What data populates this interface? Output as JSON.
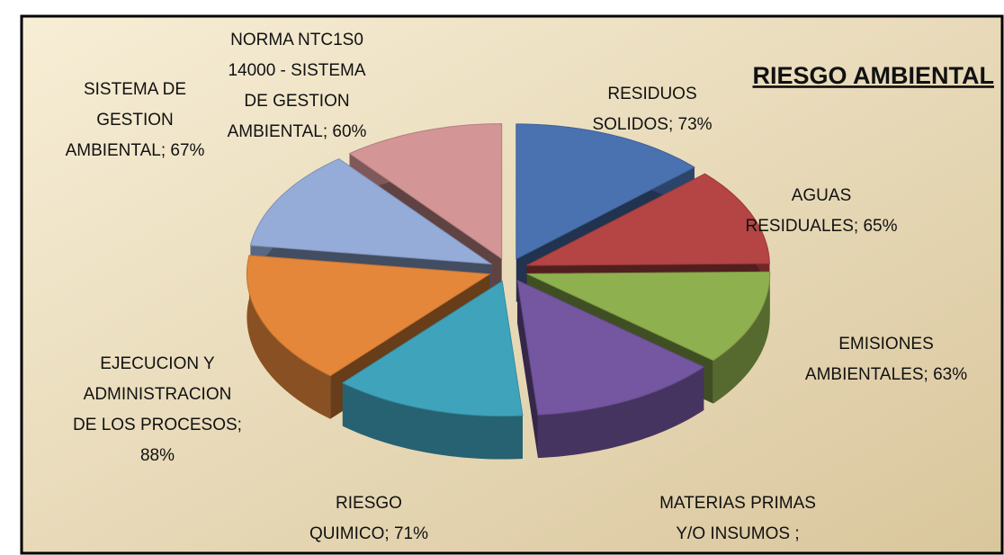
{
  "chart_data": {
    "type": "pie3d",
    "title": "RIESGO AMBIENTAL",
    "values": [
      73,
      65,
      63,
      70,
      71,
      88,
      67,
      60
    ],
    "value_labels": [
      [
        "RESIDUOS",
        "SOLIDOS; 73%"
      ],
      [
        "AGUAS",
        "RESIDUALES; 65%"
      ],
      [
        "EMISIONES",
        "AMBIENTALES; 63%"
      ],
      [
        "MATERIAS PRIMAS",
        "Y/O INSUMOS ;"
      ],
      [
        "RIESGO",
        "QUIMICO; 71%"
      ],
      [
        "EJECUCION Y",
        "ADMINISTRACION",
        "DE LOS PROCESOS;",
        "88%"
      ],
      [
        "SISTEMA DE",
        "GESTION",
        "AMBIENTAL; 67%"
      ],
      [
        "NORMA NTC1S0",
        "14000 - SISTEMA",
        "DE GESTION",
        "AMBIENTAL; 60%"
      ]
    ],
    "colors": [
      "#4a72b0",
      "#b54444",
      "#8fb04e",
      "#7457a0",
      "#3fa3bc",
      "#e5873a",
      "#95abd8",
      "#d39595"
    ]
  }
}
